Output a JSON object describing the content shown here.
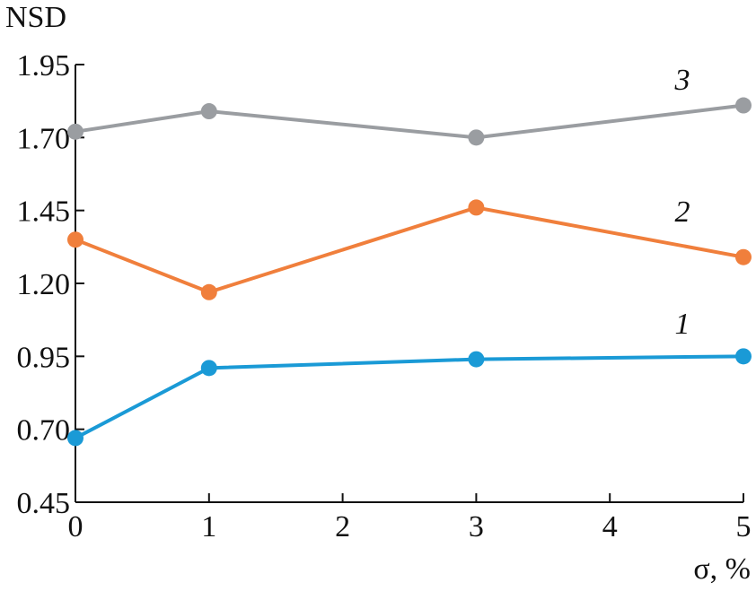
{
  "chart_data": {
    "type": "line",
    "y_label": "NSD",
    "x_label": "σ, %",
    "x": [
      0,
      1,
      3,
      5
    ],
    "series": [
      {
        "name": "1",
        "color": "#1a9ad6",
        "values": [
          0.67,
          0.91,
          0.94,
          0.95
        ]
      },
      {
        "name": "2",
        "color": "#f07f3c",
        "values": [
          1.35,
          1.17,
          1.46,
          1.29
        ]
      },
      {
        "name": "3",
        "color": "#9a9da1",
        "values": [
          1.72,
          1.79,
          1.7,
          1.81
        ]
      }
    ],
    "xlim": [
      0,
      5
    ],
    "xticks": [
      0,
      1,
      2,
      3,
      4,
      5
    ],
    "ylim": [
      0.45,
      1.95
    ],
    "yticks": [
      0.45,
      {
        "value": 0.7,
        "label": "0.70"
      },
      0.95,
      {
        "value": 1.2,
        "label": "1.20"
      },
      1.45,
      {
        "value": 1.7,
        "label": "1.70"
      },
      1.95
    ]
  }
}
